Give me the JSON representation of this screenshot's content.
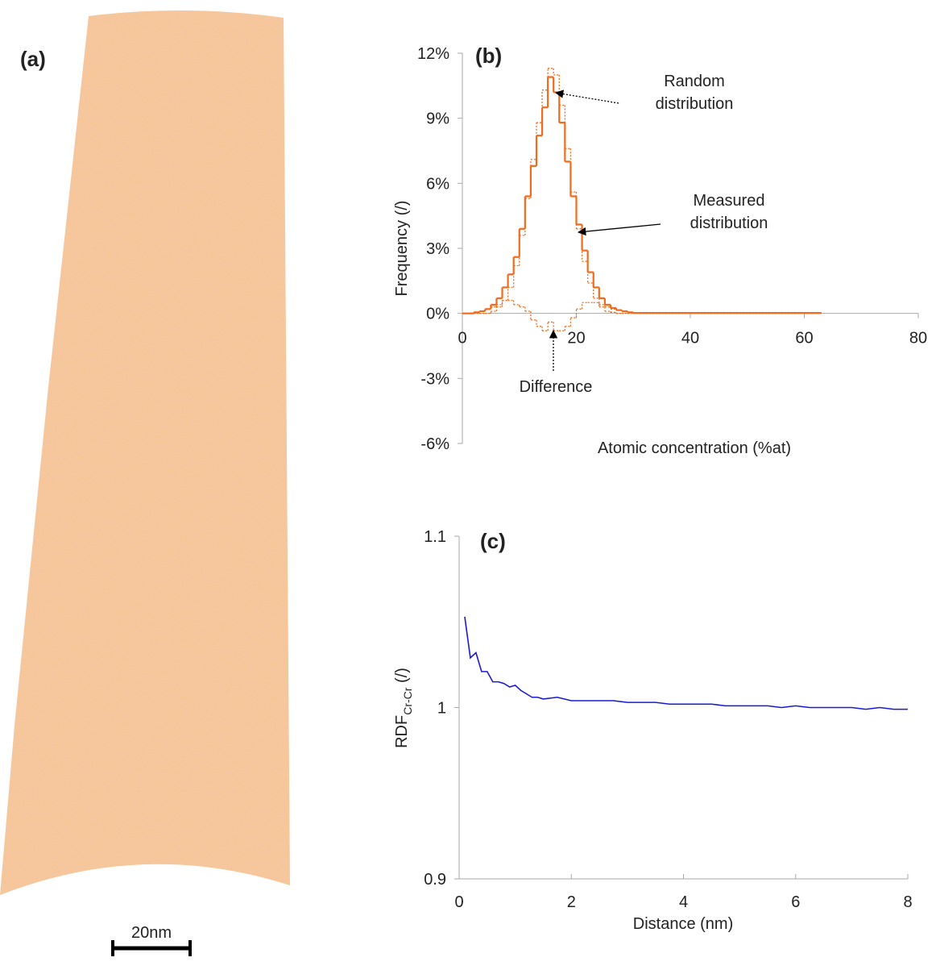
{
  "panel_a": {
    "label": "(a)",
    "scale_bar": "20nm"
  },
  "chart_data": [
    {
      "type": "histogram",
      "label": "(b)",
      "y_label": "Frequency (/)",
      "x_label": "Atomic concentration (%at)",
      "xlim": [
        0,
        80
      ],
      "xticks": [
        0,
        20,
        40,
        60,
        80
      ],
      "ylim": [
        -6,
        12
      ],
      "yticks": [
        {
          "value": -6,
          "label": "-6%"
        },
        {
          "value": -3,
          "label": "-3%"
        },
        {
          "value": 0,
          "label": "0%"
        },
        {
          "value": 3,
          "label": "3%"
        },
        {
          "value": 6,
          "label": "6%"
        },
        {
          "value": 9,
          "label": "9%"
        },
        {
          "value": 12,
          "label": "12%"
        }
      ],
      "bins": [
        0,
        1,
        2,
        3,
        4,
        5,
        6,
        7,
        8,
        9,
        10,
        11,
        12,
        13,
        14,
        15,
        16,
        17,
        18,
        19,
        20,
        21,
        22,
        23,
        24,
        25,
        26,
        27,
        28,
        29,
        30,
        63
      ],
      "series": [
        {
          "name": "Measured distribution",
          "color": "#f26a1b",
          "style": "solid",
          "values": [
            0,
            0,
            0.05,
            0.1,
            0.2,
            0.4,
            0.7,
            1.2,
            1.8,
            2.6,
            3.9,
            5.4,
            6.8,
            8.2,
            9.5,
            10.9,
            10.2,
            8.8,
            7.0,
            5.4,
            4.1,
            2.9,
            1.9,
            1.2,
            0.7,
            0.4,
            0.25,
            0.15,
            0.1,
            0.05,
            0.02
          ]
        },
        {
          "name": "Random distribution",
          "color": "#f26a1b",
          "style": "dotted",
          "values": [
            0,
            0,
            0,
            0,
            0,
            0.1,
            0.3,
            0.6,
            1.2,
            2.2,
            3.6,
            5.3,
            7.1,
            8.8,
            10.3,
            11.3,
            11.0,
            9.6,
            7.6,
            5.6,
            3.9,
            2.4,
            1.4,
            0.7,
            0.3,
            0.1,
            0.05,
            0,
            0,
            0,
            0
          ]
        },
        {
          "name": "Difference",
          "color": "#f26a1b",
          "style": "dotted",
          "values": [
            0,
            0,
            0.05,
            0.1,
            0.2,
            0.3,
            0.4,
            0.6,
            0.6,
            0.4,
            0.3,
            0.1,
            -0.3,
            -0.6,
            -0.8,
            -0.4,
            -0.8,
            -0.8,
            -0.6,
            -0.2,
            0.2,
            0.5,
            0.5,
            0.5,
            0.4,
            0.3,
            0.2,
            0.15,
            0.1,
            0.05,
            0.02
          ]
        }
      ],
      "annotations": [
        [
          "Random",
          "distribution"
        ],
        [
          "Measured",
          "distribution"
        ],
        [
          "Difference"
        ]
      ]
    },
    {
      "type": "line",
      "label": "(c)",
      "y_label": {
        "main": "RDF",
        "sub": "Cr-Cr",
        "suffix": " (/)"
      },
      "x_label": "Distance (nm)",
      "xlim": [
        0,
        8
      ],
      "xticks": [
        0,
        2,
        4,
        6,
        8
      ],
      "ylim": [
        0.9,
        1.1
      ],
      "yticks": [
        0.9,
        1,
        1.1
      ],
      "x": [
        0.1,
        0.2,
        0.3,
        0.4,
        0.5,
        0.6,
        0.7,
        0.8,
        0.9,
        1.0,
        1.1,
        1.2,
        1.3,
        1.4,
        1.5,
        1.75,
        2,
        2.25,
        2.5,
        2.75,
        3,
        3.25,
        3.5,
        3.75,
        4,
        4.25,
        4.5,
        4.75,
        5,
        5.25,
        5.5,
        5.75,
        6,
        6.25,
        6.5,
        6.75,
        7,
        7.25,
        7.5,
        7.75,
        8
      ],
      "series": [
        {
          "name": "RDF",
          "color": "#1a1ad6",
          "values": [
            1.053,
            1.029,
            1.032,
            1.021,
            1.021,
            1.015,
            1.015,
            1.014,
            1.012,
            1.013,
            1.01,
            1.008,
            1.006,
            1.006,
            1.005,
            1.006,
            1.004,
            1.004,
            1.004,
            1.004,
            1.003,
            1.003,
            1.003,
            1.002,
            1.002,
            1.002,
            1.002,
            1.001,
            1.001,
            1.001,
            1.001,
            1.0,
            1.001,
            1.0,
            1.0,
            1.0,
            1.0,
            0.999,
            1.0,
            0.999,
            0.999
          ]
        }
      ]
    }
  ]
}
